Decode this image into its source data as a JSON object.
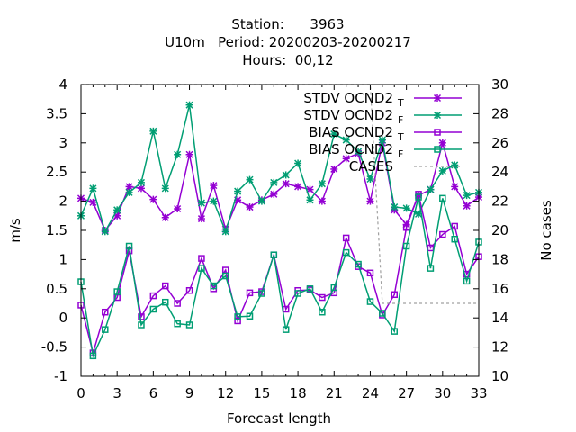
{
  "chart_data": {
    "type": "line",
    "title_lines": [
      "Station:      3963",
      "U10m   Period: 20200203-20200217",
      "Hours:  00,12"
    ],
    "xlabel": "Forecast length",
    "ylabel": "m/s",
    "y2label": "No cases",
    "xlim": [
      0,
      33
    ],
    "ylim": [
      -1,
      4
    ],
    "y2lim": [
      10,
      30
    ],
    "xticks": [
      0,
      3,
      6,
      9,
      12,
      15,
      18,
      21,
      24,
      27,
      30,
      33
    ],
    "yticks": [
      -1,
      -0.5,
      0,
      0.5,
      1,
      1.5,
      2,
      2.5,
      3,
      3.5,
      4
    ],
    "y2ticks": [
      10,
      12,
      14,
      16,
      18,
      20,
      22,
      24,
      26,
      28,
      30
    ],
    "grid": false,
    "legend_position": "top-right",
    "x": [
      0,
      1,
      2,
      3,
      4,
      5,
      6,
      7,
      8,
      9,
      10,
      11,
      12,
      13,
      14,
      15,
      16,
      17,
      18,
      19,
      20,
      21,
      22,
      23,
      24,
      25,
      26,
      27,
      28,
      29,
      30,
      31,
      32,
      33
    ],
    "series": [
      {
        "name": "STDV OCND2",
        "sub": "T",
        "color": "#9400d3",
        "marker": "x",
        "axis": "y1",
        "values": [
          2.05,
          1.98,
          1.5,
          1.75,
          2.25,
          2.22,
          2.03,
          1.72,
          1.87,
          2.8,
          1.7,
          2.27,
          1.52,
          2.02,
          1.9,
          2.02,
          2.12,
          2.3,
          2.25,
          2.2,
          2.0,
          2.55,
          2.73,
          2.82,
          2.0,
          3.0,
          1.85,
          1.6,
          2.1,
          2.2,
          3.0,
          2.25,
          1.92,
          2.07
        ]
      },
      {
        "name": "STDV OCND2",
        "sub": "F",
        "color": "#009e73",
        "marker": "x",
        "axis": "y1",
        "values": [
          1.75,
          2.22,
          1.48,
          1.85,
          2.15,
          2.32,
          3.2,
          2.22,
          2.8,
          3.65,
          1.97,
          2.0,
          1.48,
          2.17,
          2.37,
          2.0,
          2.32,
          2.45,
          2.65,
          2.02,
          2.3,
          3.15,
          3.05,
          2.85,
          2.38,
          3.05,
          1.9,
          1.88,
          1.78,
          2.2,
          2.52,
          2.62,
          2.1,
          2.15
        ]
      },
      {
        "name": "BIAS OCND2",
        "sub": "T",
        "color": "#9400d3",
        "marker": "square",
        "axis": "y1",
        "values": [
          0.22,
          -0.6,
          0.1,
          0.35,
          1.15,
          0.02,
          0.38,
          0.55,
          0.25,
          0.47,
          1.02,
          0.5,
          0.82,
          -0.05,
          0.43,
          0.45,
          1.08,
          0.15,
          0.47,
          0.48,
          0.35,
          0.43,
          1.37,
          0.88,
          0.77,
          0.05,
          0.4,
          1.55,
          2.12,
          1.2,
          1.43,
          1.57,
          0.75,
          1.05
        ]
      },
      {
        "name": "BIAS OCND2",
        "sub": "F",
        "color": "#009e73",
        "marker": "square",
        "axis": "y1",
        "values": [
          0.62,
          -0.65,
          -0.2,
          0.45,
          1.23,
          -0.12,
          0.15,
          0.27,
          -0.1,
          -0.12,
          0.85,
          0.55,
          0.72,
          0.02,
          0.03,
          0.42,
          1.08,
          -0.2,
          0.42,
          0.5,
          0.1,
          0.52,
          1.12,
          0.92,
          0.28,
          0.08,
          -0.23,
          1.23,
          2.07,
          0.85,
          2.05,
          1.35,
          0.63,
          1.3
        ]
      },
      {
        "name": "CASES",
        "sub": "",
        "color": "#a0a0a0",
        "marker": "none",
        "dashed": true,
        "axis": "y2",
        "values": [
          30,
          30,
          30,
          30,
          30,
          30,
          30,
          30,
          30,
          30,
          30,
          30,
          30,
          30,
          30,
          30,
          30,
          30,
          30,
          30,
          30,
          30,
          30,
          30,
          30,
          15,
          15,
          15,
          15,
          15,
          15,
          15,
          15,
          15
        ]
      }
    ]
  }
}
